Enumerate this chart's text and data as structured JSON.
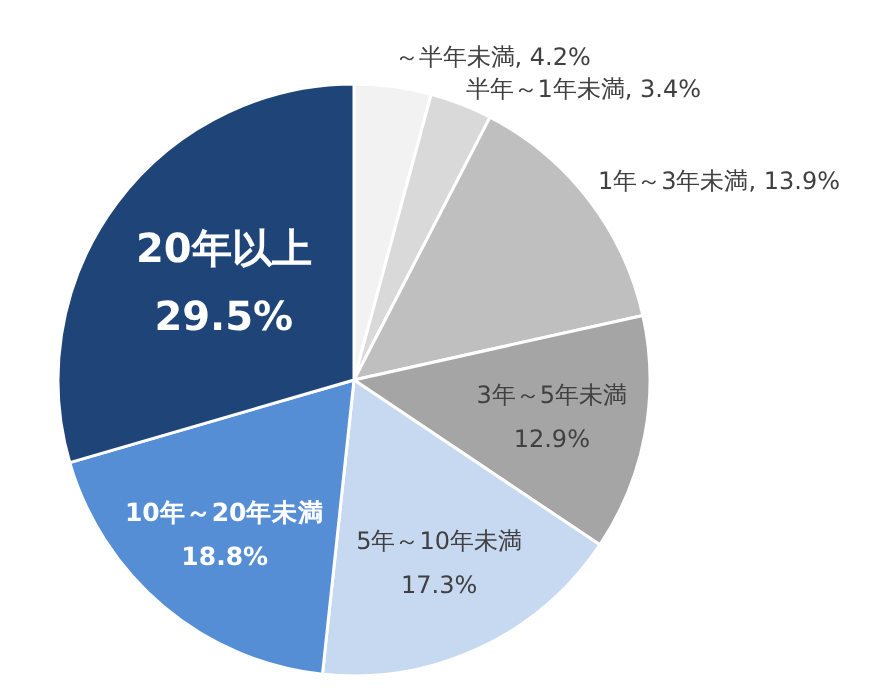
{
  "chart_data": {
    "type": "pie",
    "categories": [
      "～半年未満",
      "半年～1年未満",
      "1年～3年未満",
      "3年～5年未満",
      "5年～10年未満",
      "10年～20年未満",
      "20年以上"
    ],
    "values": [
      4.2,
      3.4,
      13.9,
      12.9,
      17.3,
      18.8,
      29.5
    ],
    "value_labels": [
      "4.2%",
      "3.4%",
      "13.9%",
      "12.9%",
      "17.3%",
      "18.8%",
      "29.5%"
    ],
    "colors": [
      "#f2f2f2",
      "#d9d9d9",
      "#bfbfbf",
      "#a5a5a5",
      "#c6d9f1",
      "#558ed5",
      "#1f4578"
    ],
    "legend": false
  }
}
